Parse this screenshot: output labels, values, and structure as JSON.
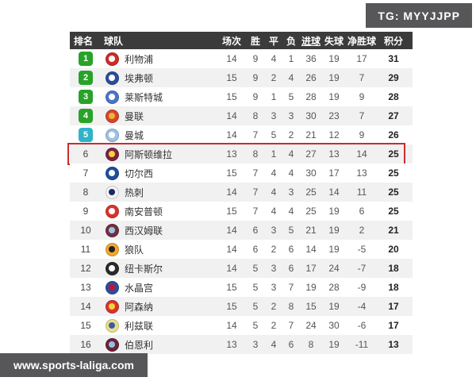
{
  "overlays": {
    "tg_badge": "TG: MYYJJPP",
    "watermark": "www.sports-laliga.com"
  },
  "colors": {
    "header_bg": "#3b3b3b",
    "overlay_bg": "#57575a",
    "row_alt_bg": "#f1f1f2",
    "green_badge": "#28a228",
    "cyan_badge": "#2eb3c9",
    "highlight_border": "#cc2b2b"
  },
  "table": {
    "columns": [
      {
        "key": "rank",
        "label": "排名"
      },
      {
        "key": "team",
        "label": "球队"
      },
      {
        "key": "played",
        "label": "场次"
      },
      {
        "key": "win",
        "label": "胜"
      },
      {
        "key": "draw",
        "label": "平"
      },
      {
        "key": "loss",
        "label": "负"
      },
      {
        "key": "gf",
        "label": "进球",
        "underline": true
      },
      {
        "key": "ga",
        "label": "失球"
      },
      {
        "key": "gd",
        "label": "净胜球"
      },
      {
        "key": "pts",
        "label": "积分"
      }
    ],
    "rows": [
      {
        "rank": 1,
        "badge": "green",
        "team": "利物浦",
        "crest": [
          "#cd2c26",
          "#ffffff"
        ],
        "played": 14,
        "win": 9,
        "draw": 4,
        "loss": 1,
        "gf": 36,
        "ga": 19,
        "gd": 17,
        "pts": 31,
        "highlight": false
      },
      {
        "rank": 2,
        "badge": "green",
        "team": "埃弗顿",
        "crest": [
          "#2a4e9c",
          "#ffffff"
        ],
        "played": 15,
        "win": 9,
        "draw": 2,
        "loss": 4,
        "gf": 26,
        "ga": 19,
        "gd": 7,
        "pts": 29,
        "highlight": false
      },
      {
        "rank": 3,
        "badge": "green",
        "team": "莱斯特城",
        "crest": [
          "#4a76c9",
          "#ffffff"
        ],
        "played": 15,
        "win": 9,
        "draw": 1,
        "loss": 5,
        "gf": 28,
        "ga": 19,
        "gd": 9,
        "pts": 28,
        "highlight": false
      },
      {
        "rank": 4,
        "badge": "green",
        "team": "曼联",
        "crest": [
          "#d6452c",
          "#f0b13b"
        ],
        "played": 14,
        "win": 8,
        "draw": 3,
        "loss": 3,
        "gf": 30,
        "ga": 23,
        "gd": 7,
        "pts": 27,
        "highlight": false
      },
      {
        "rank": 5,
        "badge": "cyan",
        "team": "曼城",
        "crest": [
          "#9cc2e5",
          "#ffffff"
        ],
        "played": 14,
        "win": 7,
        "draw": 5,
        "loss": 2,
        "gf": 21,
        "ga": 12,
        "gd": 9,
        "pts": 26,
        "highlight": false
      },
      {
        "rank": 6,
        "badge": "none",
        "team": "阿斯顿维拉",
        "crest": [
          "#7d2342",
          "#f3d23e"
        ],
        "played": 13,
        "win": 8,
        "draw": 1,
        "loss": 4,
        "gf": 27,
        "ga": 13,
        "gd": 14,
        "pts": 25,
        "highlight": true
      },
      {
        "rank": 7,
        "badge": "none",
        "team": "切尔西",
        "crest": [
          "#1f4e9c",
          "#ffffff"
        ],
        "played": 15,
        "win": 7,
        "draw": 4,
        "loss": 4,
        "gf": 30,
        "ga": 17,
        "gd": 13,
        "pts": 25,
        "highlight": false
      },
      {
        "rank": 8,
        "badge": "none",
        "team": "热刺",
        "crest": [
          "#f4f4f8",
          "#1b2a5e"
        ],
        "played": 14,
        "win": 7,
        "draw": 4,
        "loss": 3,
        "gf": 25,
        "ga": 14,
        "gd": 11,
        "pts": 25,
        "highlight": false
      },
      {
        "rank": 9,
        "badge": "none",
        "team": "南安普顿",
        "crest": [
          "#d8342c",
          "#ffffff"
        ],
        "played": 15,
        "win": 7,
        "draw": 4,
        "loss": 4,
        "gf": 25,
        "ga": 19,
        "gd": 6,
        "pts": 25,
        "highlight": false
      },
      {
        "rank": 10,
        "badge": "none",
        "team": "西汉姆联",
        "crest": [
          "#722f3e",
          "#9bc4e2"
        ],
        "played": 14,
        "win": 6,
        "draw": 3,
        "loss": 5,
        "gf": 21,
        "ga": 19,
        "gd": 2,
        "pts": 21,
        "highlight": false
      },
      {
        "rank": 11,
        "badge": "none",
        "team": "狼队",
        "crest": [
          "#f0a92e",
          "#231f20"
        ],
        "played": 14,
        "win": 6,
        "draw": 2,
        "loss": 6,
        "gf": 14,
        "ga": 19,
        "gd": -5,
        "pts": 20,
        "highlight": false
      },
      {
        "rank": 12,
        "badge": "none",
        "team": "纽卡斯尔",
        "crest": [
          "#2b2b2b",
          "#ffffff"
        ],
        "played": 14,
        "win": 5,
        "draw": 3,
        "loss": 6,
        "gf": 17,
        "ga": 24,
        "gd": -7,
        "pts": 18,
        "highlight": false
      },
      {
        "rank": 13,
        "badge": "none",
        "team": "水晶宫",
        "crest": [
          "#2b4ea0",
          "#c4122e"
        ],
        "played": 15,
        "win": 5,
        "draw": 3,
        "loss": 7,
        "gf": 19,
        "ga": 28,
        "gd": -9,
        "pts": 18,
        "highlight": false
      },
      {
        "rank": 14,
        "badge": "none",
        "team": "阿森纳",
        "crest": [
          "#d8342c",
          "#f3d23e"
        ],
        "played": 15,
        "win": 5,
        "draw": 2,
        "loss": 8,
        "gf": 15,
        "ga": 19,
        "gd": -4,
        "pts": 17,
        "highlight": false
      },
      {
        "rank": 15,
        "badge": "none",
        "team": "利兹联",
        "crest": [
          "#e9df89",
          "#3a5ba9"
        ],
        "played": 14,
        "win": 5,
        "draw": 2,
        "loss": 7,
        "gf": 24,
        "ga": 30,
        "gd": -6,
        "pts": 17,
        "highlight": false
      },
      {
        "rank": 16,
        "badge": "none",
        "team": "伯恩利",
        "crest": [
          "#6a2337",
          "#95c0e8"
        ],
        "played": 13,
        "win": 3,
        "draw": 4,
        "loss": 6,
        "gf": 8,
        "ga": 19,
        "gd": -11,
        "pts": 13,
        "highlight": false
      }
    ]
  }
}
